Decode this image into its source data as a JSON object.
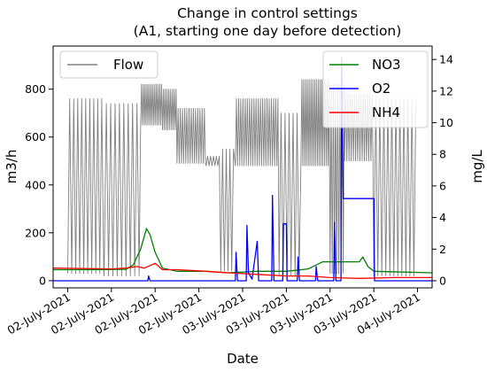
{
  "chart_data": {
    "type": "line",
    "title": "Change in control settings",
    "subtitle": "(A1, starting one day before detection)",
    "xlabel": "Date",
    "ylabel": "m3/h",
    "ylabel_right": "mg/L",
    "x_tick_labels": [
      "02-July-2021",
      "02-July-2021",
      "02-July-2021",
      "02-July-2021",
      "03-July-2021",
      "03-July-2021",
      "03-July-2021",
      "03-July-2021",
      "04-July-2021"
    ],
    "x_ticks_hours": [
      0,
      6,
      12,
      18,
      24,
      30,
      36,
      42,
      48
    ],
    "xlim_hours": [
      -2,
      50
    ],
    "ylim_left": [
      -30,
      980
    ],
    "ylim_right": [
      -0.45,
      14.85
    ],
    "y_ticks_left": [
      0,
      200,
      400,
      600,
      800
    ],
    "y_ticks_right": [
      0,
      2,
      4,
      6,
      8,
      10,
      12,
      14
    ],
    "grid": false,
    "legend_left": {
      "placement": "top-left",
      "entries": [
        "Flow"
      ]
    },
    "legend_right": {
      "placement": "top-right",
      "entries": [
        "NO3",
        "O2",
        "NH4"
      ]
    },
    "series": [
      {
        "name": "Flow",
        "axis": "left",
        "color": "#808080",
        "style": "oscillating",
        "segments": [
          {
            "from": 0,
            "to": 5,
            "low": 30,
            "high": 760,
            "period": 0.55
          },
          {
            "from": 5,
            "to": 10,
            "low": 20,
            "high": 740,
            "period": 0.6
          },
          {
            "from": 10,
            "to": 13,
            "low": 650,
            "high": 820,
            "period": 0.25
          },
          {
            "from": 13,
            "to": 15,
            "low": 630,
            "high": 800,
            "period": 0.25
          },
          {
            "from": 15,
            "to": 19,
            "low": 490,
            "high": 720,
            "period": 0.3
          },
          {
            "from": 19,
            "to": 21,
            "low": 480,
            "high": 520,
            "period": 0.4
          },
          {
            "from": 21,
            "to": 23,
            "low": 40,
            "high": 550,
            "period": 0.5
          },
          {
            "from": 23,
            "to": 29,
            "low": 480,
            "high": 760,
            "period": 0.3
          },
          {
            "from": 29,
            "to": 32,
            "low": 20,
            "high": 700,
            "period": 0.55
          },
          {
            "from": 32,
            "to": 36,
            "low": 480,
            "high": 840,
            "period": 0.25
          },
          {
            "from": 36,
            "to": 38,
            "low": 30,
            "high": 820,
            "period": 0.3
          },
          {
            "from": 38,
            "to": 42,
            "low": 500,
            "high": 780,
            "period": 0.3
          },
          {
            "from": 42,
            "to": 48,
            "low": 20,
            "high": 760,
            "period": 0.55
          }
        ]
      },
      {
        "name": "NO3",
        "axis": "right",
        "color": "#008000",
        "points": [
          [
            -2,
            0.7
          ],
          [
            4,
            0.7
          ],
          [
            8,
            0.72
          ],
          [
            9,
            1.0
          ],
          [
            10,
            2.0
          ],
          [
            10.8,
            3.3
          ],
          [
            11.3,
            2.9
          ],
          [
            12,
            1.8
          ],
          [
            13,
            0.8
          ],
          [
            15,
            0.6
          ],
          [
            19,
            0.6
          ],
          [
            22,
            0.5
          ],
          [
            26,
            0.6
          ],
          [
            30,
            0.6
          ],
          [
            33,
            0.75
          ],
          [
            35,
            1.2
          ],
          [
            36,
            1.2
          ],
          [
            40,
            1.2
          ],
          [
            40.5,
            1.5
          ],
          [
            41.2,
            0.9
          ],
          [
            42,
            0.6
          ],
          [
            50,
            0.5
          ]
        ]
      },
      {
        "name": "O2",
        "axis": "right",
        "color": "#0000ff",
        "points": [
          [
            -2,
            0
          ],
          [
            11,
            0
          ],
          [
            11.1,
            0.3
          ],
          [
            11.3,
            0
          ],
          [
            23,
            0
          ],
          [
            23.1,
            1.8
          ],
          [
            23.3,
            0
          ],
          [
            24.5,
            0
          ],
          [
            24.6,
            3.5
          ],
          [
            24.8,
            0.5
          ],
          [
            25.3,
            0.1
          ],
          [
            26,
            2.5
          ],
          [
            26.2,
            0
          ],
          [
            28,
            0
          ],
          [
            28.1,
            5.4
          ],
          [
            28.3,
            0
          ],
          [
            29.5,
            0
          ],
          [
            29.6,
            3.6
          ],
          [
            30,
            3.6
          ],
          [
            30.1,
            0
          ],
          [
            31.5,
            0
          ],
          [
            31.6,
            1.5
          ],
          [
            31.8,
            0
          ],
          [
            34,
            0
          ],
          [
            34.1,
            0.9
          ],
          [
            34.3,
            0
          ],
          [
            36.5,
            0
          ],
          [
            36.6,
            3.7
          ],
          [
            36.8,
            0
          ],
          [
            37.5,
            0
          ],
          [
            37.6,
            14.1
          ],
          [
            37.8,
            5.2
          ],
          [
            42,
            5.2
          ],
          [
            42.1,
            0
          ],
          [
            50,
            0
          ]
        ]
      },
      {
        "name": "NH4",
        "axis": "right",
        "color": "#ff0000",
        "points": [
          [
            -2,
            0.8
          ],
          [
            6,
            0.75
          ],
          [
            8,
            0.8
          ],
          [
            9.5,
            0.9
          ],
          [
            10.5,
            0.8
          ],
          [
            12,
            1.1
          ],
          [
            13,
            0.7
          ],
          [
            15,
            0.7
          ],
          [
            19,
            0.6
          ],
          [
            22,
            0.5
          ],
          [
            26,
            0.4
          ],
          [
            30,
            0.3
          ],
          [
            33,
            0.3
          ],
          [
            36,
            0.2
          ],
          [
            40,
            0.15
          ],
          [
            45,
            0.2
          ],
          [
            50,
            0.2
          ]
        ]
      }
    ]
  }
}
